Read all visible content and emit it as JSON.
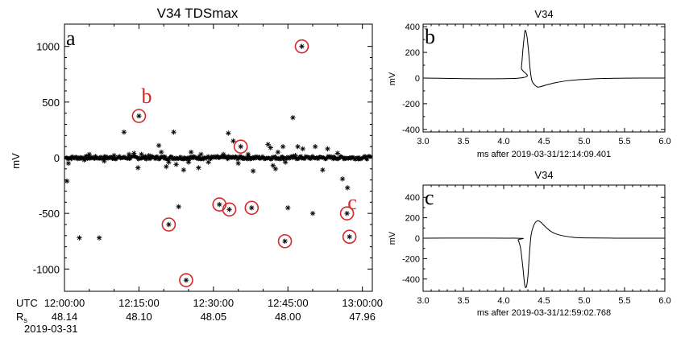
{
  "chart_data": [
    {
      "type": "scatter",
      "title": "V34 TDSmax",
      "panel_label": "a",
      "ylabel": "mV",
      "ylim": [
        -1200,
        1200
      ],
      "yticks": [
        -1000,
        -500,
        0,
        500,
        1000
      ],
      "xlim_minutes": [
        0,
        62
      ],
      "x_rows": [
        {
          "label": "UTC",
          "ticks": [
            "12:00:00",
            "12:15:00",
            "12:30:00",
            "12:45:00",
            "13:00:00"
          ]
        },
        {
          "label": "Rs",
          "ticks": [
            "48.14",
            "48.10",
            "48.05",
            "48.00",
            "47.96"
          ]
        }
      ],
      "date": "2019-03-31",
      "marker": "asterisk",
      "circle_color": "#d62728",
      "band_half_width_mV": 15,
      "points": [
        {
          "x": 0.5,
          "y": -210
        },
        {
          "x": 0.8,
          "y": -50
        },
        {
          "x": 3,
          "y": -720
        },
        {
          "x": 4,
          "y": -20
        },
        {
          "x": 5,
          "y": 30
        },
        {
          "x": 7,
          "y": -720
        },
        {
          "x": 8,
          "y": -30
        },
        {
          "x": 10,
          "y": 20
        },
        {
          "x": 12,
          "y": 230
        },
        {
          "x": 13,
          "y": 30
        },
        {
          "x": 14,
          "y": 40
        },
        {
          "x": 14.8,
          "y": -90
        },
        {
          "x": 15.5,
          "y": 30
        },
        {
          "x": 17,
          "y": 20
        },
        {
          "x": 19,
          "y": 110
        },
        {
          "x": 19.5,
          "y": 50
        },
        {
          "x": 20.5,
          "y": -80
        },
        {
          "x": 21,
          "y": -40
        },
        {
          "x": 22,
          "y": 230
        },
        {
          "x": 22.5,
          "y": -60
        },
        {
          "x": 23,
          "y": -440
        },
        {
          "x": 24,
          "y": -110
        },
        {
          "x": 25,
          "y": -40
        },
        {
          "x": 25.5,
          "y": 50
        },
        {
          "x": 27,
          "y": -90
        },
        {
          "x": 27.5,
          "y": 30
        },
        {
          "x": 29,
          "y": -40
        },
        {
          "x": 32,
          "y": 30
        },
        {
          "x": 33,
          "y": 220
        },
        {
          "x": 34,
          "y": 150
        },
        {
          "x": 35,
          "y": -50
        },
        {
          "x": 37,
          "y": 30
        },
        {
          "x": 38,
          "y": -120
        },
        {
          "x": 41,
          "y": 120
        },
        {
          "x": 41.5,
          "y": 90
        },
        {
          "x": 42,
          "y": -70
        },
        {
          "x": 42.5,
          "y": -100
        },
        {
          "x": 43,
          "y": 50
        },
        {
          "x": 44,
          "y": 100
        },
        {
          "x": 44.5,
          "y": -40
        },
        {
          "x": 45,
          "y": -450
        },
        {
          "x": 46,
          "y": 360
        },
        {
          "x": 46.5,
          "y": 20
        },
        {
          "x": 47,
          "y": 100
        },
        {
          "x": 48,
          "y": 80
        },
        {
          "x": 50,
          "y": -500
        },
        {
          "x": 50.5,
          "y": 100
        },
        {
          "x": 52,
          "y": -110
        },
        {
          "x": 53,
          "y": 80
        },
        {
          "x": 55,
          "y": 40
        },
        {
          "x": 56,
          "y": -190
        },
        {
          "x": 57,
          "y": -270
        }
      ],
      "circled_points": [
        {
          "x": 15,
          "y": 375,
          "label": "b"
        },
        {
          "x": 21,
          "y": -600
        },
        {
          "x": 24.5,
          "y": -1100
        },
        {
          "x": 31.2,
          "y": -420
        },
        {
          "x": 33.2,
          "y": -465
        },
        {
          "x": 35.5,
          "y": 100
        },
        {
          "x": 37.7,
          "y": -450
        },
        {
          "x": 44.4,
          "y": -750
        },
        {
          "x": 47.8,
          "y": 1000
        },
        {
          "x": 56.9,
          "y": -500,
          "label": "c"
        },
        {
          "x": 57.4,
          "y": -710
        }
      ],
      "annotations": [
        "b",
        "c"
      ]
    },
    {
      "type": "line",
      "title": "V34",
      "panel_label": "b",
      "ylabel": "mV",
      "xlabel": "ms after 2019-03-31/12:14:09.401",
      "xlim": [
        3.0,
        6.0
      ],
      "ylim": [
        -420,
        420
      ],
      "xticks": [
        3.0,
        3.5,
        4.0,
        4.5,
        5.0,
        5.5,
        6.0
      ],
      "yticks": [
        -400,
        -200,
        0,
        200,
        400
      ],
      "x": [
        3.0,
        4.2,
        4.22,
        4.24,
        4.26,
        4.27,
        4.29,
        4.31,
        4.33,
        4.35,
        4.38,
        4.42,
        4.47,
        4.55,
        4.65,
        4.8,
        5.0,
        5.2,
        5.5,
        6.0
      ],
      "y": [
        0,
        0,
        80,
        230,
        350,
        370,
        320,
        200,
        60,
        -20,
        -50,
        -70,
        -65,
        -50,
        -35,
        -20,
        -10,
        -4,
        -1,
        0
      ]
    },
    {
      "type": "line",
      "title": "V34",
      "panel_label": "c",
      "ylabel": "mV",
      "xlabel": "ms after 2019-03-31/12:59:02.768",
      "xlim": [
        3.0,
        6.0
      ],
      "ylim": [
        -520,
        520
      ],
      "xticks": [
        3.0,
        3.5,
        4.0,
        4.5,
        5.0,
        5.5,
        6.0
      ],
      "yticks": [
        -400,
        -200,
        0,
        200,
        400
      ],
      "x": [
        3.0,
        4.15,
        4.18,
        4.21,
        4.24,
        4.26,
        4.28,
        4.3,
        4.32,
        4.34,
        4.37,
        4.4,
        4.43,
        4.47,
        4.52,
        4.6,
        4.7,
        4.85,
        5.0,
        5.5,
        6.0
      ],
      "y": [
        0,
        0,
        -20,
        -100,
        -300,
        -450,
        -480,
        -380,
        -150,
        30,
        120,
        160,
        170,
        150,
        110,
        60,
        30,
        10,
        3,
        0,
        0
      ]
    }
  ]
}
